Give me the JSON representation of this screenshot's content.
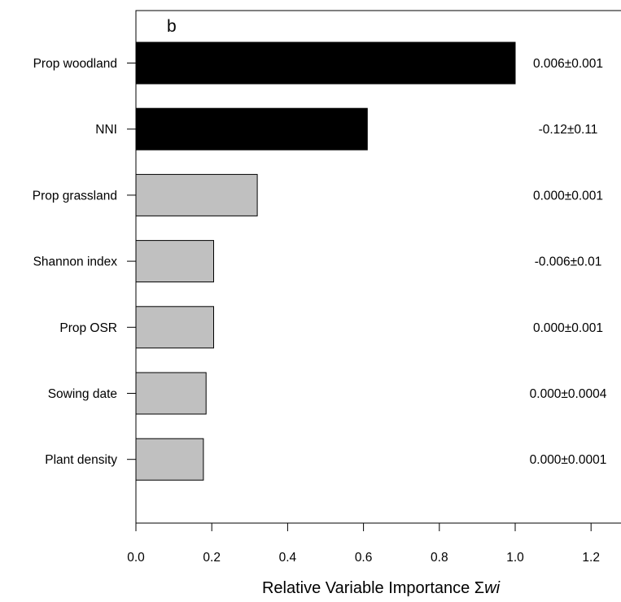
{
  "chart_data": {
    "type": "bar",
    "orientation": "horizontal",
    "panel_label": "b",
    "categories": [
      "Prop woodland",
      "NNI",
      "Prop grassland",
      "Shannon index",
      "Prop OSR",
      "Sowing date",
      "Plant density"
    ],
    "values": [
      1.0,
      0.61,
      0.32,
      0.205,
      0.205,
      0.185,
      0.178
    ],
    "value_labels": [
      "0.006±0.001",
      "-0.12±0.11",
      "0.000±0.001",
      "-0.006±0.01",
      "0.000±0.001",
      "0.000±0.0004",
      "0.000±0.0001"
    ],
    "bar_colors": [
      "#000000",
      "#000000",
      "#c0c0c0",
      "#c0c0c0",
      "#c0c0c0",
      "#c0c0c0",
      "#c0c0c0"
    ],
    "xlabel": "Relative Variable Importance Σwi",
    "xlabel_main": "Relative Variable Importance Σ",
    "xlabel_italic": "wi",
    "ylabel": "",
    "xlim": [
      0,
      1.25
    ],
    "xticks": [
      0.0,
      0.2,
      0.4,
      0.6,
      0.8,
      1.0,
      1.2
    ],
    "xtick_labels": [
      "0.0",
      "0.2",
      "0.4",
      "0.6",
      "0.8",
      "1.0",
      "1.2"
    ],
    "grid": false,
    "legend": "none"
  }
}
